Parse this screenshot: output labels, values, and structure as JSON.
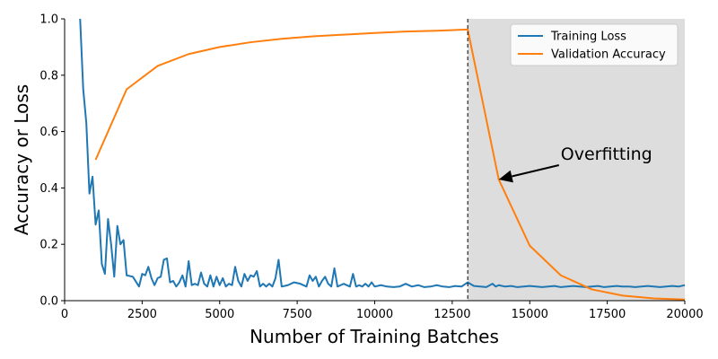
{
  "chart_data": {
    "type": "line",
    "xlabel": "Number of Training Batches",
    "ylabel": "Accuracy or Loss",
    "xlim": [
      0,
      20000
    ],
    "ylim": [
      0,
      1.0
    ],
    "xticks": [
      0,
      2500,
      5000,
      7500,
      10000,
      12500,
      15000,
      17500,
      20000
    ],
    "yticks": [
      0.0,
      0.2,
      0.4,
      0.6,
      0.8,
      1.0
    ],
    "xtick_labels": [
      "0",
      "2500",
      "5000",
      "7500",
      "10000",
      "12500",
      "15000",
      "17500",
      "20000"
    ],
    "ytick_labels": [
      "0.0",
      "0.2",
      "0.4",
      "0.6",
      "0.8",
      "1.0"
    ],
    "grid": false,
    "legend_position": "top-right",
    "colors": {
      "training": "#1f77b4",
      "validation": "#ff7f0e",
      "shade": "#dddddd"
    },
    "shaded_region": {
      "x_start": 13000,
      "x_end": 20000
    },
    "vline_x": 13000,
    "annotation": {
      "text": "Overfitting",
      "point_x": 14000,
      "point_y": 0.43,
      "text_x": 16000,
      "text_y": 0.5
    },
    "series": [
      {
        "name": "Training Loss",
        "x": [
          500,
          600,
          700,
          800,
          900,
          1000,
          1100,
          1200,
          1300,
          1400,
          1500,
          1600,
          1700,
          1800,
          1900,
          2000,
          2200,
          2400,
          2500,
          2600,
          2700,
          2800,
          2900,
          3000,
          3100,
          3200,
          3300,
          3400,
          3500,
          3600,
          3700,
          3800,
          3900,
          4000,
          4100,
          4200,
          4300,
          4400,
          4500,
          4600,
          4700,
          4800,
          4900,
          5000,
          5100,
          5200,
          5300,
          5400,
          5500,
          5600,
          5700,
          5800,
          5900,
          6000,
          6100,
          6200,
          6300,
          6400,
          6500,
          6600,
          6700,
          6800,
          6900,
          7000,
          7200,
          7400,
          7600,
          7800,
          7900,
          8000,
          8100,
          8200,
          8300,
          8400,
          8500,
          8600,
          8700,
          8800,
          8900,
          9000,
          9200,
          9300,
          9400,
          9500,
          9600,
          9700,
          9800,
          9900,
          10000,
          10200,
          10400,
          10600,
          10800,
          11000,
          11200,
          11400,
          11600,
          11800,
          12000,
          12200,
          12400,
          12600,
          12800,
          13000,
          13200,
          13400,
          13600,
          13800,
          13900,
          14000,
          14200,
          14400,
          14600,
          14800,
          15000,
          15200,
          15400,
          15600,
          15800,
          16000,
          16200,
          16400,
          16600,
          16800,
          17000,
          17200,
          17400,
          17600,
          17800,
          18000,
          18200,
          18400,
          18600,
          18800,
          19000,
          19200,
          19400,
          19600,
          19800,
          20000
        ],
        "values": [
          1.0,
          0.75,
          0.63,
          0.38,
          0.44,
          0.27,
          0.32,
          0.13,
          0.095,
          0.29,
          0.2,
          0.085,
          0.265,
          0.2,
          0.215,
          0.09,
          0.085,
          0.05,
          0.095,
          0.09,
          0.12,
          0.08,
          0.055,
          0.08,
          0.085,
          0.145,
          0.15,
          0.065,
          0.07,
          0.05,
          0.065,
          0.09,
          0.05,
          0.14,
          0.055,
          0.06,
          0.055,
          0.1,
          0.06,
          0.05,
          0.09,
          0.05,
          0.085,
          0.055,
          0.08,
          0.05,
          0.06,
          0.055,
          0.12,
          0.07,
          0.05,
          0.095,
          0.07,
          0.09,
          0.085,
          0.105,
          0.05,
          0.06,
          0.05,
          0.06,
          0.05,
          0.08,
          0.145,
          0.05,
          0.055,
          0.065,
          0.06,
          0.05,
          0.09,
          0.07,
          0.085,
          0.05,
          0.07,
          0.085,
          0.06,
          0.05,
          0.115,
          0.05,
          0.055,
          0.06,
          0.05,
          0.095,
          0.05,
          0.055,
          0.05,
          0.06,
          0.05,
          0.065,
          0.05,
          0.055,
          0.05,
          0.048,
          0.05,
          0.06,
          0.05,
          0.055,
          0.048,
          0.05,
          0.055,
          0.05,
          0.048,
          0.052,
          0.05,
          0.065,
          0.052,
          0.05,
          0.048,
          0.06,
          0.05,
          0.055,
          0.05,
          0.052,
          0.048,
          0.05,
          0.052,
          0.05,
          0.048,
          0.05,
          0.052,
          0.048,
          0.05,
          0.052,
          0.05,
          0.048,
          0.05,
          0.052,
          0.048,
          0.05,
          0.052,
          0.05,
          0.05,
          0.048,
          0.05,
          0.052,
          0.05,
          0.048,
          0.05,
          0.052,
          0.05,
          0.055
        ]
      },
      {
        "name": "Validation Accuracy",
        "x": [
          1000,
          2000,
          3000,
          4000,
          5000,
          6000,
          7000,
          8000,
          9000,
          10000,
          11000,
          12000,
          13000,
          14000,
          15000,
          16000,
          17000,
          18000,
          19000,
          20000
        ],
        "values": [
          0.5,
          0.75,
          0.833,
          0.875,
          0.9,
          0.917,
          0.929,
          0.938,
          0.944,
          0.95,
          0.955,
          0.958,
          0.962,
          0.43,
          0.195,
          0.09,
          0.04,
          0.018,
          0.008,
          0.004
        ]
      }
    ]
  }
}
